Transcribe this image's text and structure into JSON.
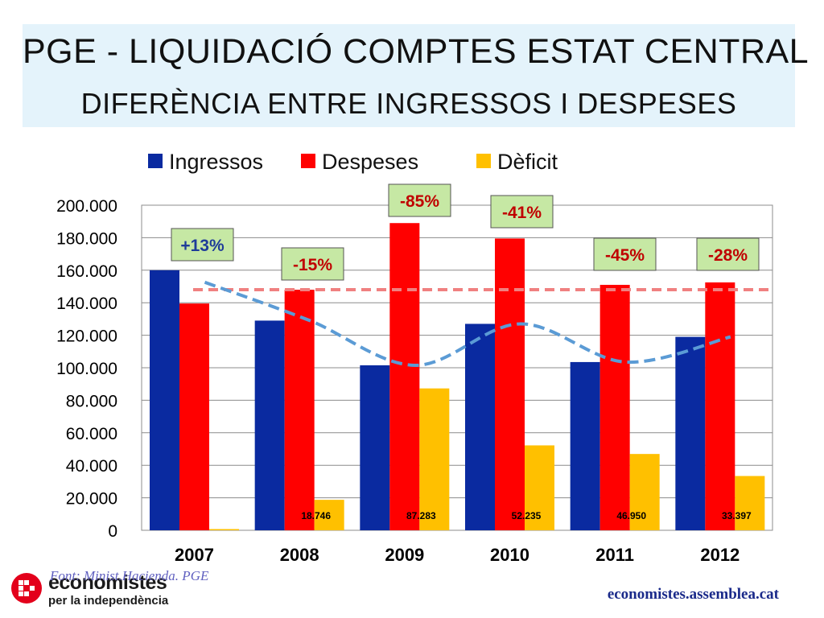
{
  "title": {
    "line1": "PGE - LIQUIDACIÓ COMPTES ESTAT CENTRAL",
    "line2": "DIFERÈNCIA ENTRE INGRESSOS I DESPESES"
  },
  "chart_data": {
    "type": "bar",
    "categories": [
      "2007",
      "2008",
      "2009",
      "2010",
      "2011",
      "2012"
    ],
    "series": [
      {
        "name": "Ingressos",
        "color": "#0a2aa0",
        "values": [
          160000,
          129000,
          101500,
          127000,
          103500,
          119000
        ]
      },
      {
        "name": "Despeses",
        "color": "#ff0000",
        "values": [
          139500,
          148000,
          189000,
          179500,
          151000,
          152500
        ]
      },
      {
        "name": "Dèficit",
        "color": "#ffc000",
        "values": [
          0,
          18746,
          87283,
          52235,
          46950,
          33397
        ]
      }
    ],
    "deficit_labels": [
      "",
      "18.746",
      "87.283",
      "52.235",
      "46.950",
      "33.397"
    ],
    "yticks": [
      "0",
      "20.000",
      "40.000",
      "60.000",
      "80.000",
      "100.000",
      "120.000",
      "140.000",
      "160.000",
      "180.000",
      "200.000"
    ],
    "ylim": [
      0,
      200000
    ],
    "reference_line": {
      "value": 148000,
      "color": "#f08080"
    },
    "trend_curve": {
      "color": "#5b9bd5"
    },
    "legend_position": "top",
    "annotations": [
      {
        "text": "+13%",
        "color": "#1f3c99",
        "year": "2007"
      },
      {
        "text": "-15%",
        "color": "#c00000",
        "year": "2008"
      },
      {
        "text": "-85%",
        "color": "#c00000",
        "year": "2009"
      },
      {
        "text": "-41%",
        "color": "#c00000",
        "year": "2010"
      },
      {
        "text": "-45%",
        "color": "#c00000",
        "year": "2011"
      },
      {
        "text": "-28%",
        "color": "#c00000",
        "year": "2012"
      }
    ]
  },
  "footer": {
    "source": "Font: Minist.Hacienda. PGE",
    "logo_name": "economistes",
    "logo_sub": "per la independència",
    "url": "economistes.assemblea.cat"
  },
  "colors": {
    "title_bg": "#e4f3fb",
    "annotation_bg": "#c6e8a4",
    "logo_red": "#e3001b"
  }
}
